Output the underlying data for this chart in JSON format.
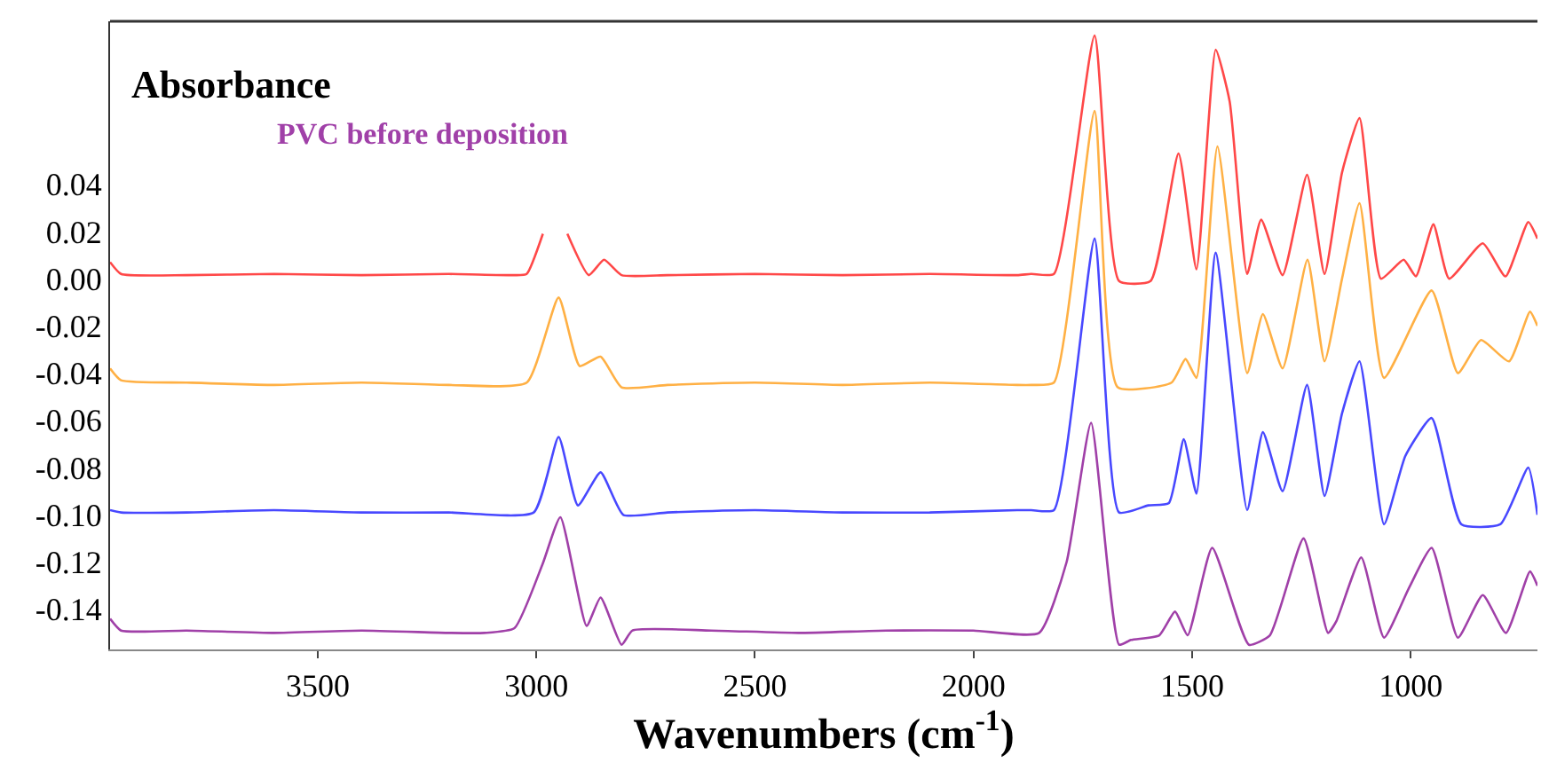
{
  "chart_data": {
    "type": "line",
    "ylabel": "Absorbance",
    "xlabel": "Wavenumbers (cm$^{-1}$)",
    "xlim": [
      3975,
      710
    ],
    "xticks": [
      3500,
      3000,
      2500,
      2000,
      1500,
      1000
    ],
    "ylim": [
      -0.157,
      0.109
    ],
    "yticks": [
      0.04,
      0.02,
      {
        "value": 0,
        "label": "0.00"
      },
      -0.02,
      -0.04,
      -0.06,
      -0.08,
      {
        "value": -0.1,
        "label": "-0.10"
      },
      -0.12,
      -0.14
    ],
    "legend": false,
    "marker": "none",
    "line_style": "solid",
    "series": [
      {
        "color": "#ff4848",
        "x": [
          3975,
          3950,
          3800,
          3600,
          3400,
          3200,
          3050,
          3022,
          2985,
          2960,
          2929,
          2880,
          2845,
          2805,
          2700,
          2500,
          2300,
          2100,
          1900,
          1868,
          1816,
          1723,
          1667,
          1595,
          1531,
          1490,
          1446,
          1414,
          1374,
          1342,
          1293,
          1237,
          1197,
          1157,
          1117,
          1068,
          1016,
          988,
          948,
          912,
          835,
          783,
          731,
          710
        ],
        "values": [
          0.007,
          0.002,
          0.0015,
          0.002,
          0.0015,
          0.002,
          0.0015,
          0.002,
          0.019,
          null,
          0.019,
          0.0015,
          0.008,
          0.0015,
          0.0015,
          0.002,
          0.0015,
          0.002,
          0.0015,
          0.002,
          0.002,
          0.103,
          -0.001,
          -0.001,
          0.053,
          0.004,
          0.097,
          0.075,
          0.002,
          0.025,
          0.0015,
          0.044,
          0.002,
          0.045,
          0.068,
          0.0,
          0.008,
          0.001,
          0.023,
          0.0,
          0.015,
          0.001,
          0.024,
          0.017
        ]
      },
      {
        "color": "#ffb044",
        "x": [
          3975,
          3950,
          3800,
          3600,
          3400,
          3200,
          3022,
          2949,
          2901,
          2853,
          2805,
          2700,
          2500,
          2300,
          2100,
          1900,
          1868,
          1816,
          1723,
          1670,
          1547,
          1515,
          1490,
          1442,
          1374,
          1338,
          1293,
          1236,
          1197,
          1157,
          1117,
          1061,
          952,
          892,
          839,
          775,
          727,
          710
        ],
        "values": [
          -0.038,
          -0.043,
          -0.044,
          -0.045,
          -0.044,
          -0.045,
          -0.044,
          -0.008,
          -0.037,
          -0.033,
          -0.046,
          -0.045,
          -0.044,
          -0.045,
          -0.044,
          -0.045,
          -0.045,
          -0.044,
          0.071,
          -0.046,
          -0.044,
          -0.034,
          -0.042,
          0.056,
          -0.04,
          -0.015,
          -0.038,
          0.008,
          -0.035,
          0.0,
          0.032,
          -0.042,
          -0.005,
          -0.04,
          -0.026,
          -0.035,
          -0.014,
          -0.02
        ]
      },
      {
        "color": "#4848ff",
        "x": [
          3975,
          3950,
          3800,
          3600,
          3400,
          3200,
          3006,
          2949,
          2905,
          2853,
          2801,
          2700,
          2500,
          2300,
          2100,
          1900,
          1868,
          1816,
          1723,
          1667,
          1600,
          1553,
          1519,
          1490,
          1446,
          1374,
          1338,
          1293,
          1237,
          1197,
          1157,
          1117,
          1061,
          1012,
          952,
          884,
          795,
          731,
          710
        ],
        "values": [
          -0.098,
          -0.099,
          -0.099,
          -0.098,
          -0.099,
          -0.099,
          -0.099,
          -0.067,
          -0.096,
          -0.082,
          -0.1,
          -0.099,
          -0.098,
          -0.099,
          -0.099,
          -0.098,
          -0.098,
          -0.098,
          0.017,
          -0.099,
          -0.096,
          -0.095,
          -0.068,
          -0.091,
          0.011,
          -0.098,
          -0.065,
          -0.09,
          -0.045,
          -0.092,
          -0.057,
          -0.035,
          -0.104,
          -0.075,
          -0.059,
          -0.104,
          -0.104,
          -0.08,
          -0.1
        ]
      },
      {
        "name": "PVC before deposition",
        "color": "#a040a8",
        "x": [
          3975,
          3950,
          3800,
          3600,
          3400,
          3200,
          3119,
          3050,
          2986,
          2945,
          2885,
          2853,
          2805,
          2780,
          2600,
          2400,
          2200,
          2000,
          1850,
          1787,
          1731,
          1667,
          1640,
          1575,
          1539,
          1510,
          1454,
          1370,
          1322,
          1245,
          1189,
          1170,
          1113,
          1061,
          1004,
          952,
          892,
          835,
          782,
          727,
          710
        ],
        "values": [
          -0.144,
          -0.149,
          -0.149,
          -0.15,
          -0.149,
          -0.15,
          -0.15,
          -0.148,
          -0.121,
          -0.101,
          -0.147,
          -0.135,
          -0.155,
          -0.149,
          -0.149,
          -0.15,
          -0.149,
          -0.149,
          -0.15,
          -0.12,
          -0.061,
          -0.155,
          -0.153,
          -0.151,
          -0.141,
          -0.151,
          -0.114,
          -0.155,
          -0.151,
          -0.11,
          -0.15,
          -0.145,
          -0.118,
          -0.152,
          -0.131,
          -0.114,
          -0.152,
          -0.134,
          -0.15,
          -0.124,
          -0.13
        ]
      }
    ]
  }
}
